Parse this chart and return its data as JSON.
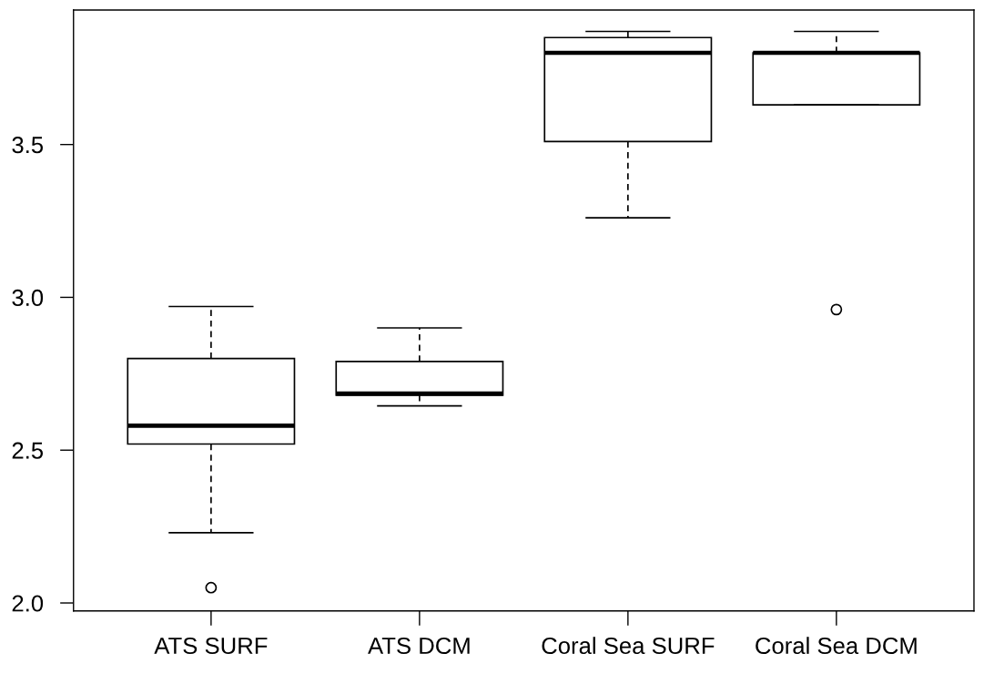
{
  "chart_data": {
    "type": "box",
    "categories": [
      "ATS SURF",
      "ATS DCM",
      "Coral Sea SURF",
      "Coral Sea DCM"
    ],
    "boxes": [
      {
        "low": 2.23,
        "q1": 2.52,
        "median": 2.58,
        "q3": 2.8,
        "high": 2.97,
        "outliers": [
          2.05
        ]
      },
      {
        "low": 2.645,
        "q1": 2.68,
        "median": 2.685,
        "q3": 2.79,
        "high": 2.9
      },
      {
        "low": 3.26,
        "q1": 3.51,
        "median": 3.8,
        "q3": 3.85,
        "high": 3.87
      },
      {
        "low": 3.63,
        "q1": 3.63,
        "median": 3.8,
        "q3": 3.8,
        "high": 3.87,
        "outliers": [
          2.96
        ]
      }
    ],
    "ylim": [
      1.974,
      3.94
    ],
    "yticks": [
      {
        "value": 2,
        "label": "2.0"
      },
      {
        "value": 2.5,
        "label": "2.5"
      },
      {
        "value": 3,
        "label": "3.0"
      },
      {
        "value": 3.5,
        "label": "3.5"
      }
    ],
    "grid": false
  }
}
